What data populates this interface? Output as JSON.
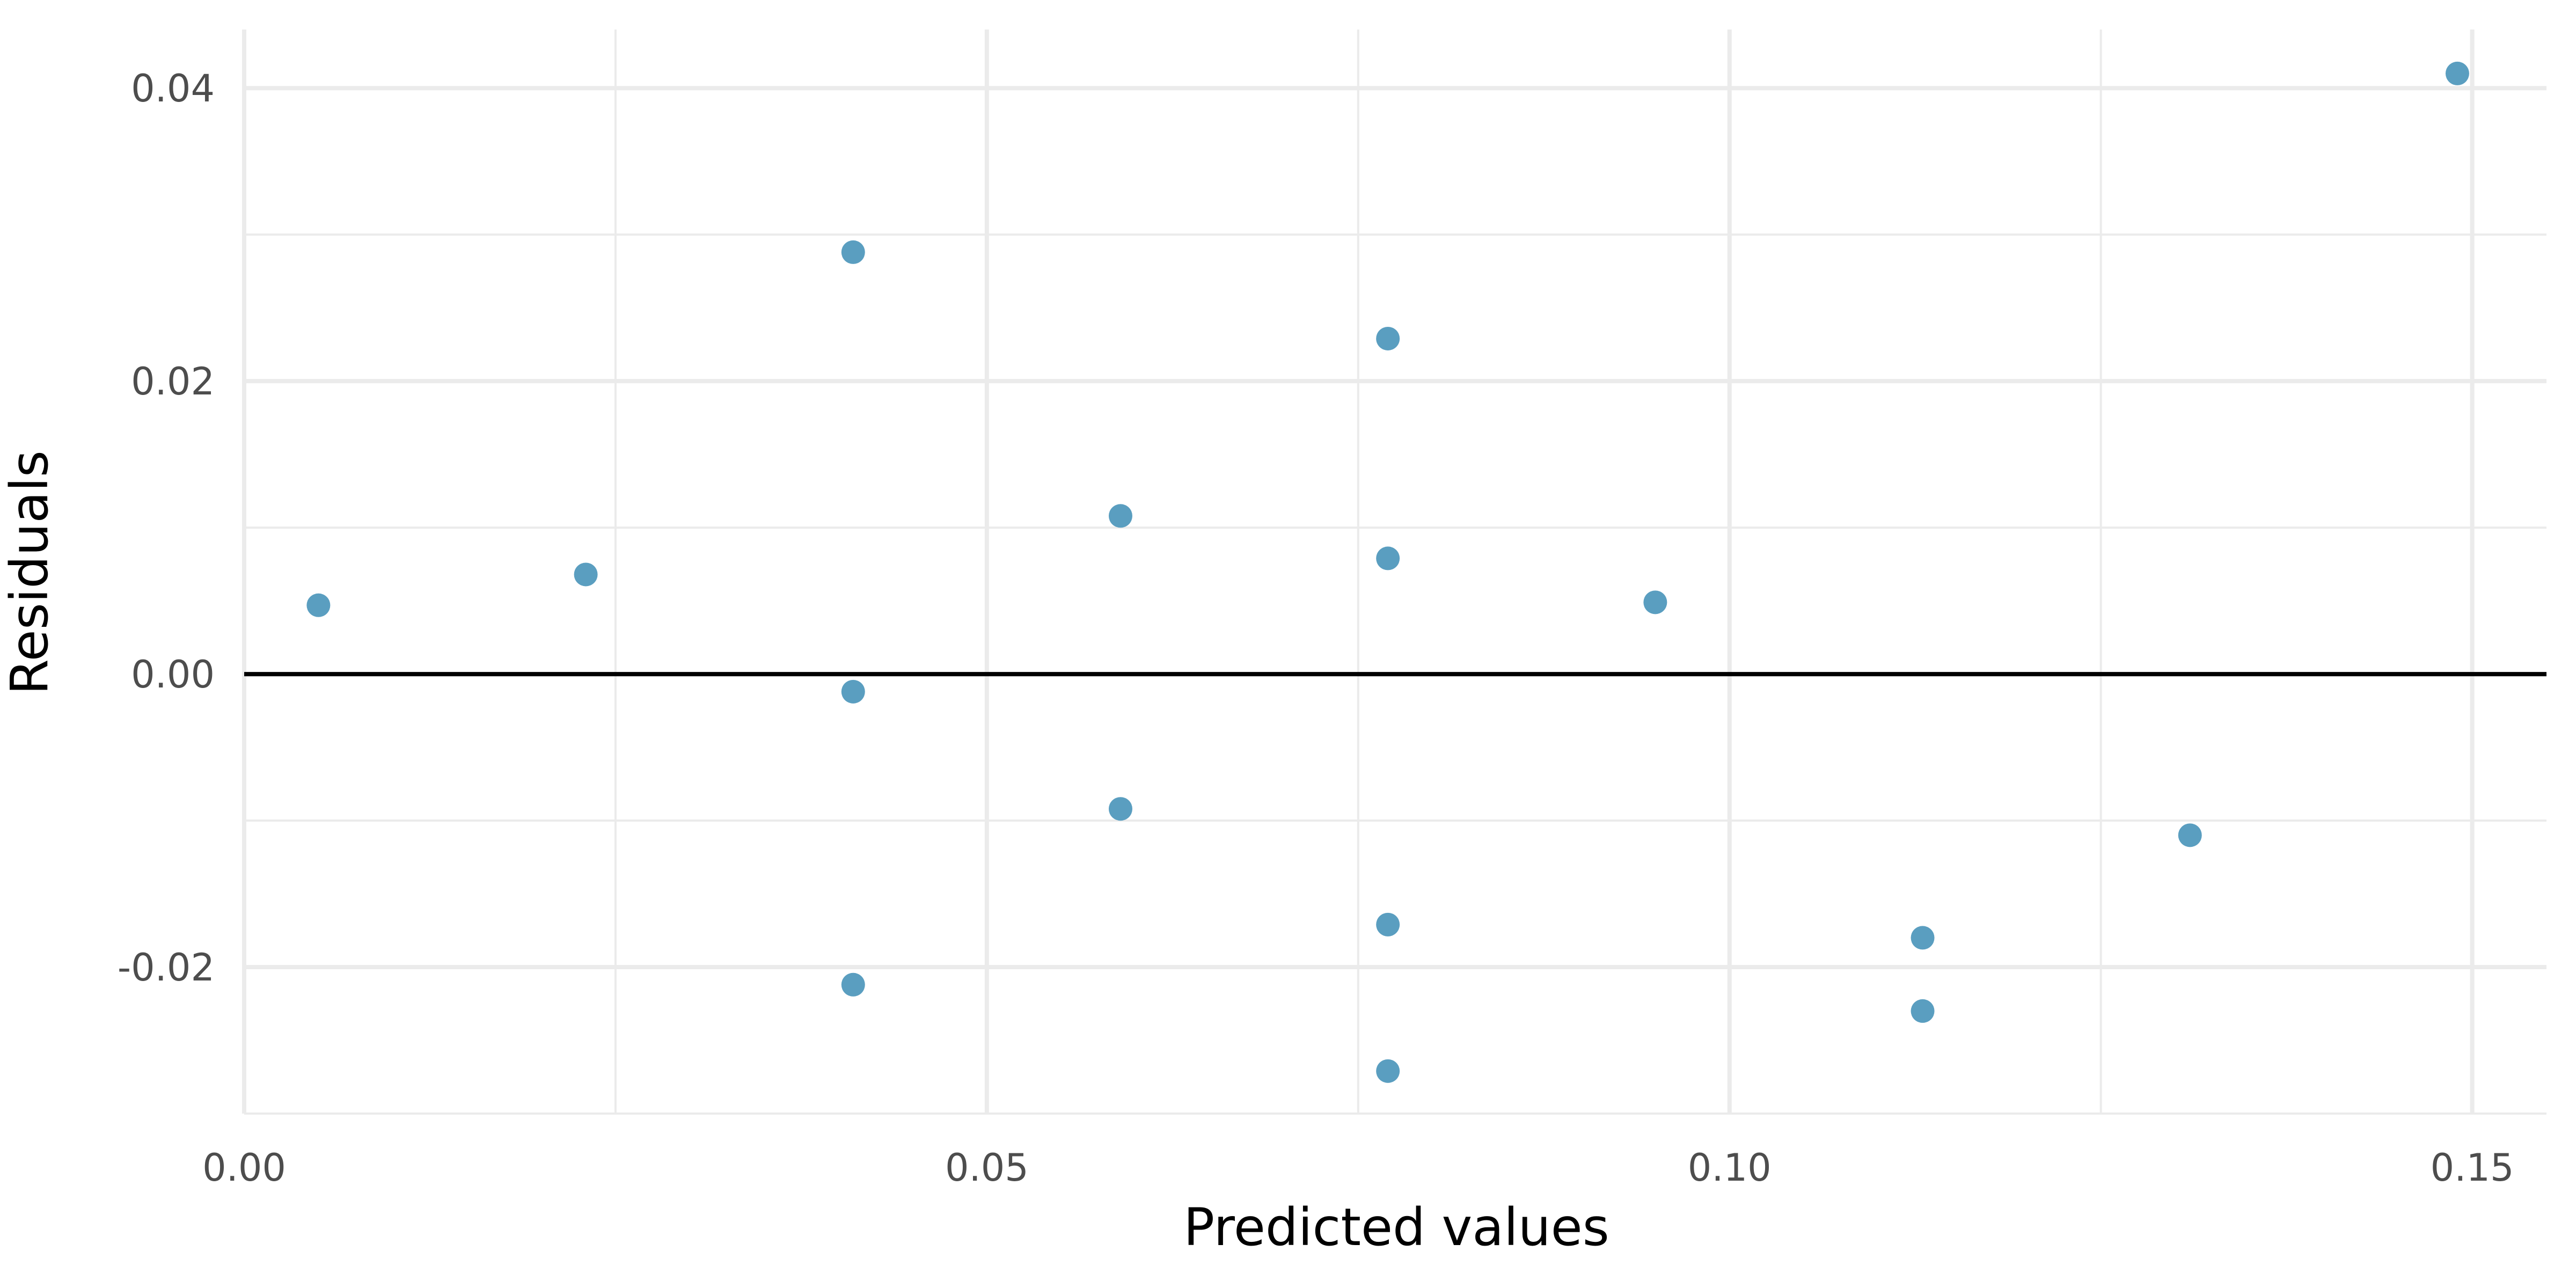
{
  "chart_data": {
    "type": "scatter",
    "title": "",
    "xlabel": "Predicted values",
    "ylabel": "Residuals",
    "xlim": [
      0.0,
      0.155
    ],
    "ylim": [
      -0.03,
      0.044
    ],
    "x_ticks": [
      0.0,
      0.05,
      0.1,
      0.15
    ],
    "x_tick_labels": [
      "0.00",
      "0.05",
      "0.10",
      "0.15"
    ],
    "y_ticks": [
      -0.02,
      0.0,
      0.02,
      0.04
    ],
    "y_tick_labels": [
      "-0.02",
      "0.00",
      "0.02",
      "0.04"
    ],
    "grid": true,
    "reference_line_y": 0.0,
    "point_color": "#5a9ec0",
    "reference_line_color": "#000000",
    "points": [
      {
        "x": 0.005,
        "y": 0.0047
      },
      {
        "x": 0.023,
        "y": 0.0068
      },
      {
        "x": 0.041,
        "y": 0.0288
      },
      {
        "x": 0.041,
        "y": -0.0012
      },
      {
        "x": 0.041,
        "y": -0.0212
      },
      {
        "x": 0.059,
        "y": 0.0108
      },
      {
        "x": 0.059,
        "y": -0.0092
      },
      {
        "x": 0.077,
        "y": 0.0229
      },
      {
        "x": 0.077,
        "y": 0.0079
      },
      {
        "x": 0.077,
        "y": -0.0171
      },
      {
        "x": 0.077,
        "y": -0.0271
      },
      {
        "x": 0.095,
        "y": 0.0049
      },
      {
        "x": 0.113,
        "y": -0.018
      },
      {
        "x": 0.113,
        "y": -0.023
      },
      {
        "x": 0.131,
        "y": -0.011
      },
      {
        "x": 0.149,
        "y": 0.041
      }
    ]
  }
}
